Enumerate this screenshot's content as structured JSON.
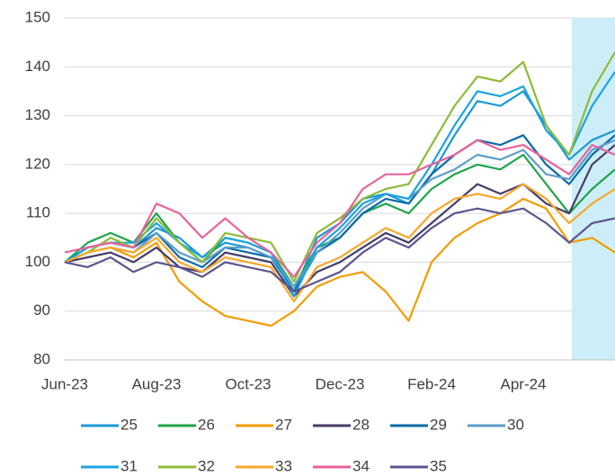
{
  "chart_data": {
    "type": "line",
    "categories": [
      "Jun-23",
      null,
      null,
      null,
      "Aug-23",
      null,
      null,
      null,
      "Oct-23",
      null,
      null,
      null,
      "Dec-23",
      null,
      null,
      null,
      "Feb-24",
      null,
      null,
      null,
      "Apr-24",
      null,
      null,
      null,
      null
    ],
    "ylim": [
      80,
      150
    ],
    "yticks": [
      80,
      90,
      100,
      110,
      120,
      130,
      140,
      150
    ],
    "grid": true,
    "series": [
      {
        "name": "25",
        "color": "#1b98d5",
        "values": [
          100,
          103,
          104,
          103,
          107,
          105,
          101,
          104,
          103,
          101,
          94,
          105,
          108,
          113,
          114,
          112,
          118,
          126,
          133,
          132,
          135,
          128,
          121,
          125,
          127
        ]
      },
      {
        "name": "26",
        "color": "#1ea54a",
        "values": [
          100,
          104,
          106,
          104,
          110,
          104,
          100,
          105,
          104,
          102,
          95,
          103,
          105,
          110,
          112,
          110,
          115,
          118,
          120,
          119,
          122,
          116,
          110,
          115,
          119
        ]
      },
      {
        "name": "27",
        "color": "#f39c00",
        "values": [
          100,
          102,
          103,
          101,
          104,
          96,
          92,
          89,
          88,
          87,
          90,
          95,
          97,
          98,
          94,
          88,
          100,
          105,
          108,
          110,
          113,
          111,
          104,
          105,
          102
        ]
      },
      {
        "name": "28",
        "color": "#463c68",
        "values": [
          100,
          101,
          102,
          100,
          103,
          99,
          98,
          102,
          101,
          100,
          93,
          98,
          100,
          103,
          106,
          104,
          108,
          112,
          116,
          114,
          116,
          112,
          110,
          120,
          124
        ]
      },
      {
        "name": "29",
        "color": "#0a6ba6",
        "values": [
          100,
          103,
          104,
          103,
          106,
          101,
          99,
          103,
          102,
          101,
          94,
          102,
          105,
          110,
          113,
          112,
          118,
          122,
          125,
          124,
          126,
          120,
          116,
          122,
          126
        ]
      },
      {
        "name": "30",
        "color": "#5c9ec9",
        "values": [
          100,
          102,
          103,
          102,
          106,
          102,
          100,
          103,
          103,
          101,
          95,
          102,
          106,
          111,
          114,
          113,
          117,
          119,
          122,
          121,
          123,
          118,
          117,
          123,
          125
        ]
      },
      {
        "name": "31",
        "color": "#1ca3e2",
        "values": [
          100,
          103,
          104,
          104,
          108,
          104,
          101,
          105,
          104,
          102,
          93,
          103,
          107,
          112,
          114,
          113,
          120,
          128,
          135,
          134,
          136,
          127,
          122,
          132,
          139
        ]
      },
      {
        "name": "32",
        "color": "#8dbb38",
        "values": [
          100,
          102,
          105,
          103,
          109,
          104,
          100,
          106,
          105,
          104,
          96,
          106,
          109,
          113,
          115,
          116,
          124,
          132,
          138,
          137,
          141,
          128,
          122,
          135,
          143
        ]
      },
      {
        "name": "33",
        "color": "#f7a72a",
        "values": [
          100,
          102,
          103,
          102,
          105,
          100,
          98,
          101,
          100,
          99,
          92,
          99,
          101,
          104,
          107,
          105,
          110,
          113,
          114,
          113,
          116,
          113,
          108,
          112,
          115
        ]
      },
      {
        "name": "34",
        "color": "#e8639a",
        "values": [
          102,
          103,
          104,
          103,
          112,
          110,
          105,
          109,
          105,
          102,
          97,
          104,
          108,
          115,
          118,
          118,
          120,
          122,
          125,
          123,
          124,
          121,
          118,
          124,
          122
        ]
      },
      {
        "name": "35",
        "color": "#5d558f",
        "values": [
          100,
          99,
          101,
          98,
          100,
          99,
          97,
          100,
          99,
          98,
          94,
          96,
          98,
          102,
          105,
          103,
          107,
          110,
          111,
          110,
          111,
          108,
          104,
          108,
          109
        ]
      }
    ]
  }
}
